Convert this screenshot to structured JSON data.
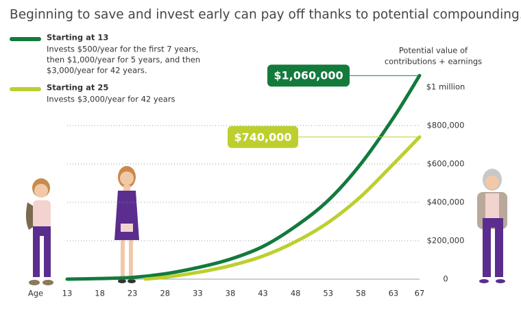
{
  "chart_data": {
    "type": "line",
    "title": "Beginning to save and invest early can pay off thanks to potential compounding.",
    "y_axis_label": [
      "Potential value of",
      "contributions + earnings"
    ],
    "x_axis_label": "Age",
    "xlim": [
      13,
      67
    ],
    "xticks": [
      13,
      18,
      23,
      28,
      33,
      38,
      43,
      48,
      53,
      58,
      63,
      67
    ],
    "ylim": [
      0,
      1000000
    ],
    "yticks": [
      0,
      {
        "value": 200000,
        "label": "$200,000"
      },
      {
        "value": 400000,
        "label": "$400,000"
      },
      {
        "value": 600000,
        "label": "$600,000"
      },
      {
        "value": 800000,
        "label": "$800,000"
      },
      {
        "value": 1000000,
        "label": "$1 million"
      }
    ],
    "grid": true,
    "series": [
      {
        "name": "Starting at 13",
        "color": "#137a3c",
        "description": [
          "Invests $500/year for the first 7 years,",
          "then $1,000/year for 5 years, and then",
          "$3,000/year for 42 years."
        ],
        "x": [
          13,
          18,
          23,
          28,
          33,
          38,
          43,
          48,
          53,
          58,
          63,
          67
        ],
        "values": [
          0,
          3000,
          9000,
          28000,
          60000,
          104000,
          170000,
          275000,
          410000,
          600000,
          840000,
          1060000
        ],
        "value_labels": [
          null,
          null,
          null,
          null,
          null,
          null,
          null,
          null,
          null,
          null,
          null,
          "$1,060,000"
        ]
      },
      {
        "name": "Starting at 25",
        "color": "#bccf2e",
        "description": [
          "Invests $3,000/year for 42 years"
        ],
        "x": [
          25,
          28,
          33,
          38,
          43,
          48,
          53,
          58,
          63,
          67
        ],
        "values": [
          0,
          10000,
          35000,
          70000,
          120000,
          195000,
          295000,
          430000,
          600000,
          740000
        ],
        "value_labels": [
          null,
          null,
          null,
          null,
          null,
          null,
          null,
          null,
          null,
          "$740,000"
        ]
      }
    ]
  }
}
